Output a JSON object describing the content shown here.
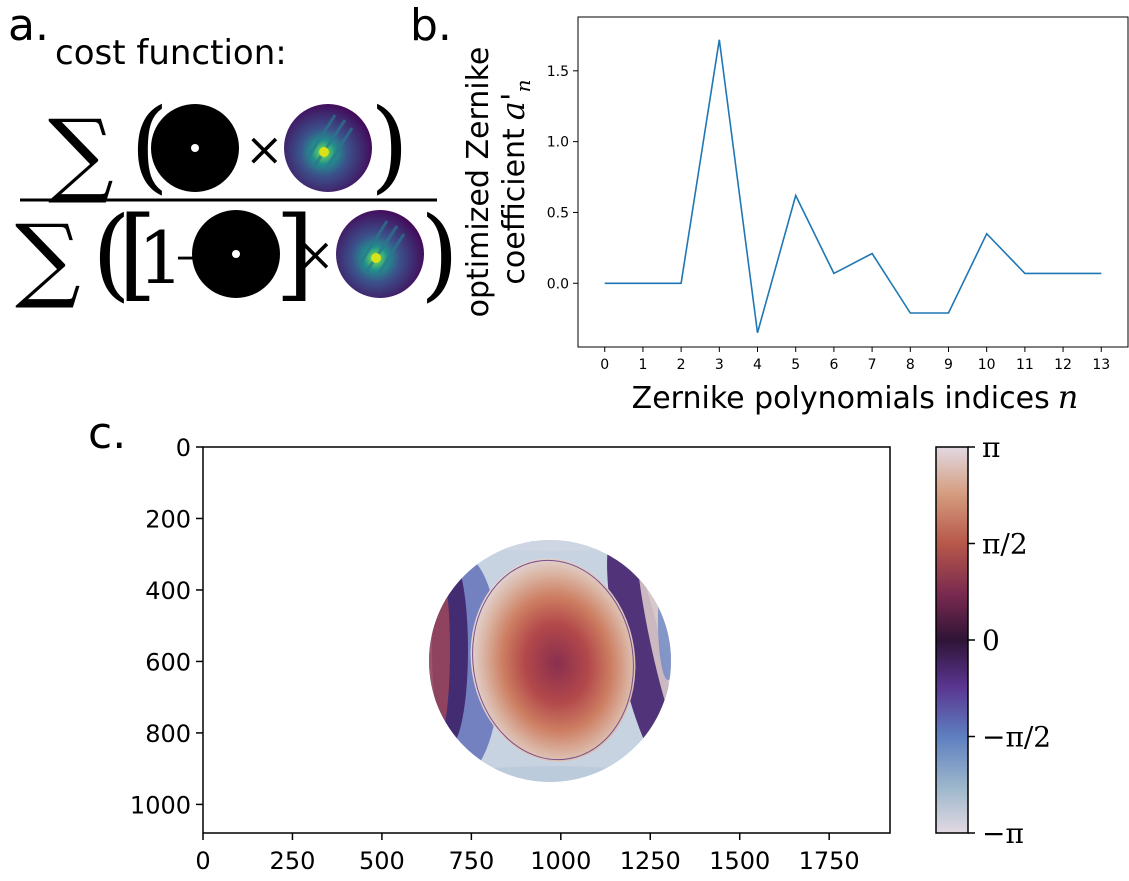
{
  "panel_labels": {
    "a": "a.",
    "b": "b.",
    "c": "c."
  },
  "panel_a": {
    "heading": "cost function:",
    "one": "1",
    "minus": "–",
    "times": "×",
    "sum": "∑"
  },
  "chart_data": [
    {
      "type": "line",
      "panel": "b",
      "xlabel": "Zernike polynomials indices",
      "xlabel_var": "n",
      "ylabel_line1": "optimized Zernike",
      "ylabel_line2": "coefficient",
      "ylabel_var": "a'",
      "ylabel_sub": "n",
      "x": [
        0,
        1,
        2,
        3,
        4,
        5,
        6,
        7,
        8,
        9,
        10,
        11,
        12,
        13
      ],
      "y": [
        0.0,
        0.0,
        0.0,
        1.72,
        -0.35,
        0.62,
        0.07,
        0.21,
        -0.21,
        -0.21,
        0.35,
        0.07,
        0.07,
        0.07
      ],
      "xticks": [
        "0",
        "1",
        "2",
        "3",
        "4",
        "5",
        "6",
        "7",
        "8",
        "9",
        "10",
        "11",
        "12",
        "13"
      ],
      "yticks": [
        "0.0",
        "0.5",
        "1.0",
        "1.5"
      ],
      "xlim": [
        -0.7,
        13.7
      ],
      "ylim": [
        -0.45,
        1.88
      ],
      "series_color": "#1f77b4"
    },
    {
      "type": "heatmap",
      "panel": "c",
      "xticks": [
        "0",
        "250",
        "500",
        "750",
        "1000",
        "1250",
        "1500",
        "1750"
      ],
      "yticks": [
        "0",
        "200",
        "400",
        "600",
        "800",
        "1000"
      ],
      "xlim": [
        0,
        1920
      ],
      "ylim": [
        1080,
        0
      ],
      "colormap": "twilight",
      "colorbar_ticks": [
        "π",
        "π/2",
        "0",
        "−π/2",
        "−π"
      ],
      "colorbar_range": [
        -3.1416,
        3.1416
      ],
      "pupil_center": [
        975,
        595
      ],
      "pupil_radius": 340
    }
  ]
}
